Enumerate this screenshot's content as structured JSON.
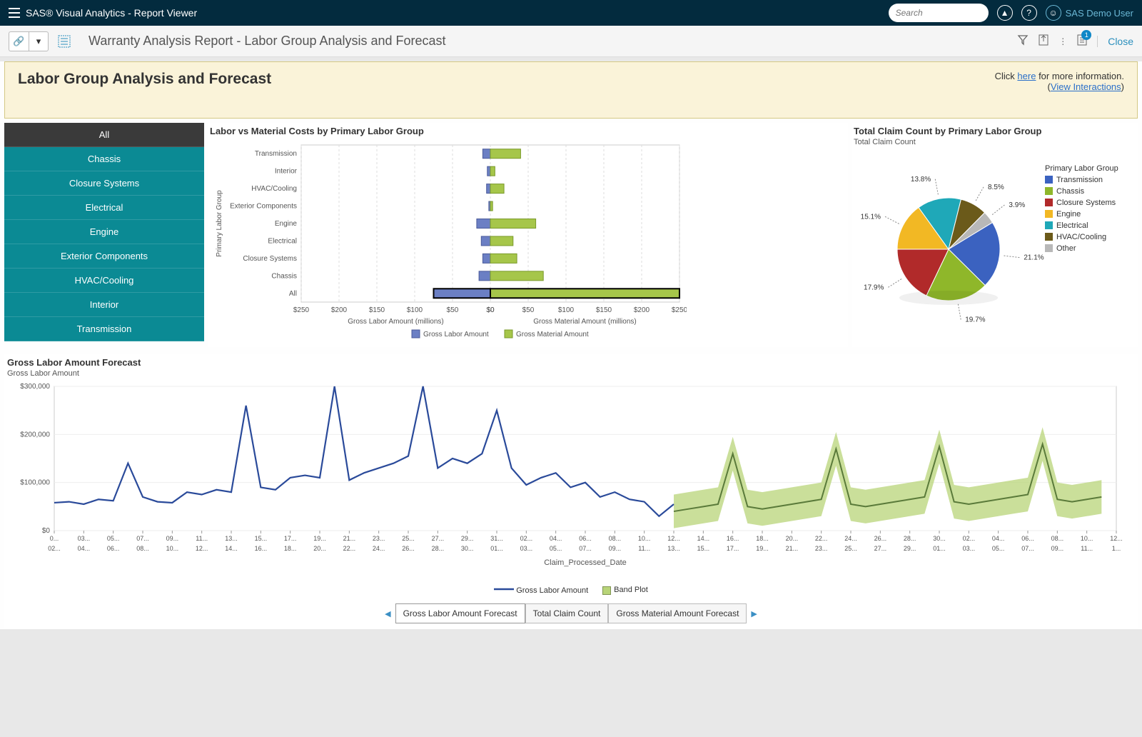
{
  "banner": {
    "app_title": "SAS® Visual Analytics - Report Viewer",
    "search_placeholder": "Search",
    "user_name": "SAS Demo User"
  },
  "toolbar": {
    "report_title": "Warranty Analysis Report - Labor Group Analysis and Forecast",
    "close_label": "Close",
    "badge_count": "1"
  },
  "header": {
    "title": "Labor Group Analysis and Forecast",
    "info_prefix": "Click ",
    "info_link1": "here",
    "info_mid": " for more information.",
    "info_link2": "View Interactions"
  },
  "filter": {
    "items": [
      "All",
      "Chassis",
      "Closure Systems",
      "Electrical",
      "Engine",
      "Exterior Components",
      "HVAC/Cooling",
      "Interior",
      "Transmission"
    ],
    "selected_index": 0
  },
  "bar_chart": {
    "title": "Labor vs Material Costs by Primary Labor Group",
    "y_axis_label": "Primary Labor Group",
    "categories": [
      "Transmission",
      "Interior",
      "HVAC/Cooling",
      "Exterior Components",
      "Engine",
      "Electrical",
      "Closure Systems",
      "Chassis",
      "All"
    ],
    "labor_values": [
      10,
      4,
      5,
      2,
      18,
      12,
      10,
      15,
      75
    ],
    "material_values": [
      40,
      6,
      18,
      3,
      60,
      30,
      35,
      70,
      250
    ],
    "x_left_label": "Gross Labor Amount (millions)",
    "x_right_label": "Gross Material Amount (millions)",
    "x_ticks": [
      "$250",
      "$200",
      "$150",
      "$100",
      "$50",
      "$0",
      "$0",
      "$50",
      "$100",
      "$150",
      "$200",
      "$250"
    ],
    "x_max": 250,
    "legend": [
      "Gross Labor Amount",
      "Gross Material Amount"
    ],
    "colors": {
      "labor": "#6b7fc4",
      "material": "#a6c64a",
      "border": "#4a5a9a",
      "border2": "#7a9a2a"
    },
    "grid_color": "#dcdcdc",
    "highlight_row_index": 8
  },
  "pie_chart": {
    "title": "Total Claim Count by Primary Labor Group",
    "subtitle": "Total Claim Count",
    "legend_title": "Primary Labor Group",
    "slices": [
      {
        "label": "Transmission",
        "pct": 21.1,
        "color": "#3b62c0"
      },
      {
        "label": "Chassis",
        "pct": 19.7,
        "color": "#8fb72a"
      },
      {
        "label": "Closure Systems",
        "pct": 17.9,
        "color": "#b12a2a"
      },
      {
        "label": "Engine",
        "pct": 15.1,
        "color": "#f2b824"
      },
      {
        "label": "Electrical",
        "pct": 13.8,
        "color": "#1fa8b8"
      },
      {
        "label": "HVAC/Cooling",
        "pct": 8.5,
        "color": "#6b5a1a"
      },
      {
        "label": "Other",
        "pct": 3.9,
        "color": "#b8b8b8"
      }
    ],
    "callouts": [
      "15.1%",
      "13.8%",
      "8.5%",
      "3.9%",
      "21.1%",
      "19.7%",
      "17.9%"
    ]
  },
  "forecast": {
    "title": "Gross Labor Amount Forecast",
    "subtitle": "Gross Labor Amount",
    "y_ticks": [
      "$0",
      "$100,000",
      "$200,000",
      "$300,000"
    ],
    "y_max": 300000,
    "x_label": "Claim_Processed_Date",
    "x_ticks_top": [
      "0...",
      "03...",
      "05...",
      "07...",
      "09...",
      "11...",
      "13...",
      "15...",
      "17...",
      "19...",
      "21...",
      "23...",
      "25...",
      "27...",
      "29...",
      "31...",
      "02...",
      "04...",
      "06...",
      "08...",
      "10...",
      "12...",
      "14...",
      "16...",
      "18...",
      "20...",
      "22...",
      "24...",
      "26...",
      "28...",
      "30...",
      "02...",
      "04...",
      "06...",
      "08...",
      "10...",
      "12..."
    ],
    "x_ticks_bot": [
      "02...",
      "04...",
      "06...",
      "08...",
      "10...",
      "12...",
      "14...",
      "16...",
      "18...",
      "20...",
      "22...",
      "24...",
      "26...",
      "28...",
      "30...",
      "01...",
      "03...",
      "05...",
      "07...",
      "09...",
      "11...",
      "13...",
      "15...",
      "17...",
      "19...",
      "21...",
      "23...",
      "25...",
      "27...",
      "29...",
      "01...",
      "03...",
      "05...",
      "07...",
      "09...",
      "11...",
      "1..."
    ],
    "line_color": "#2a4a9a",
    "band_fill": "#b8d478",
    "band_line": "#5a7a3a",
    "actual": [
      58,
      60,
      55,
      65,
      62,
      140,
      70,
      60,
      58,
      80,
      75,
      85,
      80,
      260,
      90,
      85,
      110,
      115,
      110,
      300,
      105,
      120,
      130,
      140,
      155,
      300,
      130,
      150,
      140,
      160,
      250,
      130,
      95,
      110,
      120,
      90,
      100,
      70,
      80,
      65,
      60,
      30,
      55
    ],
    "forecast_vals": [
      40,
      45,
      50,
      55,
      160,
      50,
      45,
      50,
      55,
      60,
      65,
      170,
      55,
      50,
      55,
      60,
      65,
      70,
      175,
      60,
      55,
      60,
      65,
      70,
      75,
      180,
      65,
      60,
      65,
      70
    ],
    "forecast_band_width": 35,
    "legend": [
      "Gross Labor Amount",
      "Band Plot"
    ]
  },
  "tabs": {
    "items": [
      "Gross Labor Amount Forecast",
      "Total Claim Count",
      "Gross Material Amount Forecast"
    ],
    "active_index": 0
  }
}
